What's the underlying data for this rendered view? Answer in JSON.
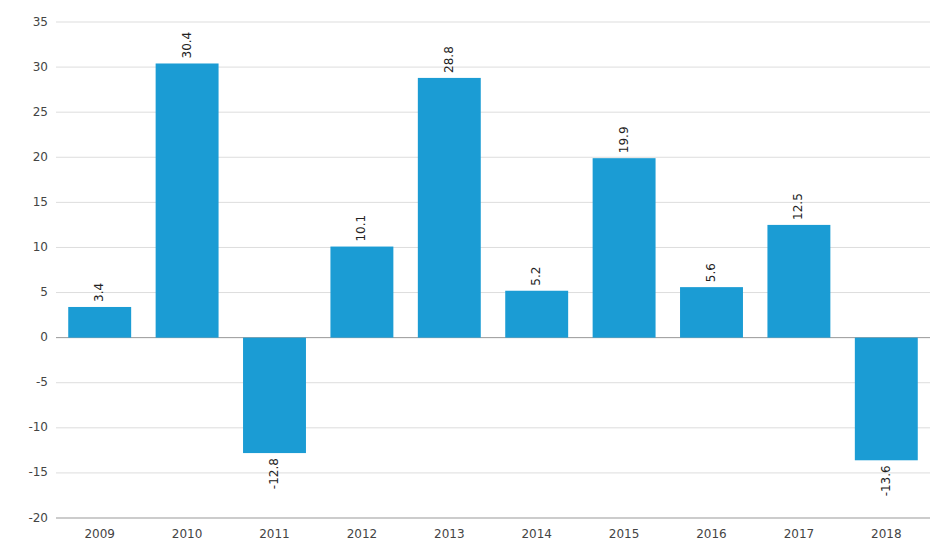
{
  "chart_data": {
    "type": "bar",
    "categories": [
      "2009",
      "2010",
      "2011",
      "2012",
      "2013",
      "2014",
      "2015",
      "2016",
      "2017",
      "2018"
    ],
    "values": [
      3.4,
      30.4,
      -12.8,
      10.1,
      28.8,
      5.2,
      19.9,
      5.6,
      12.5,
      -13.6
    ],
    "color": "#1B9CD4",
    "ylim": [
      -20,
      35
    ],
    "yticks": [
      -20,
      -15,
      -10,
      -5,
      0,
      5,
      10,
      15,
      20,
      25,
      30,
      35
    ],
    "grid": true,
    "data_labels": true
  }
}
